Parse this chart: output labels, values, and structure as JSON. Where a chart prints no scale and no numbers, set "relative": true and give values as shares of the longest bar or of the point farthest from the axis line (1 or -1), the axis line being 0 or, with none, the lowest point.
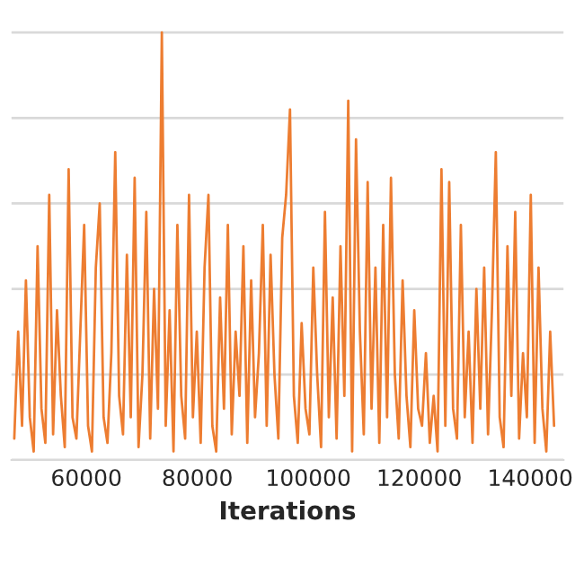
{
  "chart_data": {
    "type": "line",
    "xlabel": "Iterations",
    "relative": true,
    "grid": "y",
    "xlim": [
      46500,
      146000
    ],
    "xticks": [
      60000,
      80000,
      100000,
      120000,
      140000
    ],
    "series": [
      {
        "color": "#ed7d31",
        "x": [
          47000,
          47700,
          48400,
          49100,
          49800,
          50500,
          51200,
          51900,
          52600,
          53300,
          54000,
          54700,
          55400,
          56100,
          56800,
          57500,
          58200,
          58900,
          59600,
          60300,
          61000,
          61700,
          62400,
          63100,
          63800,
          64500,
          65200,
          65900,
          66600,
          67300,
          68000,
          68700,
          69400,
          70100,
          70800,
          71500,
          72200,
          72900,
          73600,
          74300,
          75000,
          75700,
          76400,
          77100,
          77800,
          78500,
          79200,
          79900,
          80600,
          81300,
          82000,
          82700,
          83400,
          84100,
          84800,
          85500,
          86200,
          86900,
          87600,
          88300,
          89000,
          89700,
          90400,
          91100,
          91800,
          92500,
          93200,
          93900,
          94600,
          95300,
          96000,
          96700,
          97400,
          98100,
          98800,
          99500,
          100200,
          100900,
          101600,
          102300,
          103000,
          103700,
          104400,
          105100,
          105800,
          106500,
          107200,
          107900,
          108600,
          109300,
          110000,
          110700,
          111400,
          112100,
          112800,
          113500,
          114200,
          114900,
          115600,
          116300,
          117000,
          117700,
          118400,
          119100,
          119800,
          120500,
          121200,
          121900,
          122600,
          123300,
          124000,
          124700,
          125400,
          126100,
          126800,
          127500,
          128200,
          128900,
          129600,
          130300,
          131000,
          131700,
          132400,
          133100,
          133800,
          134500,
          135200,
          135900,
          136600,
          137300,
          138000,
          138700,
          139400,
          140100,
          140800,
          141500,
          142200,
          142900,
          143600,
          144300
        ],
        "values": [
          0.05,
          0.3,
          0.08,
          0.42,
          0.1,
          0.02,
          0.5,
          0.12,
          0.04,
          0.62,
          0.06,
          0.35,
          0.15,
          0.03,
          0.68,
          0.1,
          0.05,
          0.3,
          0.55,
          0.08,
          0.02,
          0.45,
          0.6,
          0.1,
          0.04,
          0.25,
          0.72,
          0.15,
          0.06,
          0.48,
          0.1,
          0.66,
          0.03,
          0.2,
          0.58,
          0.05,
          0.4,
          0.12,
          1.0,
          0.08,
          0.35,
          0.02,
          0.55,
          0.15,
          0.05,
          0.62,
          0.1,
          0.3,
          0.04,
          0.45,
          0.62,
          0.08,
          0.02,
          0.38,
          0.12,
          0.55,
          0.06,
          0.3,
          0.15,
          0.5,
          0.04,
          0.42,
          0.1,
          0.25,
          0.55,
          0.08,
          0.48,
          0.2,
          0.05,
          0.52,
          0.62,
          0.82,
          0.15,
          0.04,
          0.32,
          0.12,
          0.06,
          0.45,
          0.2,
          0.03,
          0.58,
          0.1,
          0.38,
          0.05,
          0.5,
          0.15,
          0.84,
          0.02,
          0.75,
          0.3,
          0.06,
          0.65,
          0.12,
          0.45,
          0.04,
          0.55,
          0.1,
          0.66,
          0.2,
          0.05,
          0.42,
          0.15,
          0.03,
          0.35,
          0.12,
          0.08,
          0.25,
          0.04,
          0.15,
          0.02,
          0.68,
          0.08,
          0.65,
          0.12,
          0.05,
          0.55,
          0.1,
          0.3,
          0.04,
          0.4,
          0.12,
          0.45,
          0.06,
          0.35,
          0.72,
          0.1,
          0.03,
          0.5,
          0.15,
          0.58,
          0.05,
          0.25,
          0.1,
          0.62,
          0.04,
          0.45,
          0.12,
          0.02,
          0.3,
          0.08
        ]
      }
    ]
  }
}
